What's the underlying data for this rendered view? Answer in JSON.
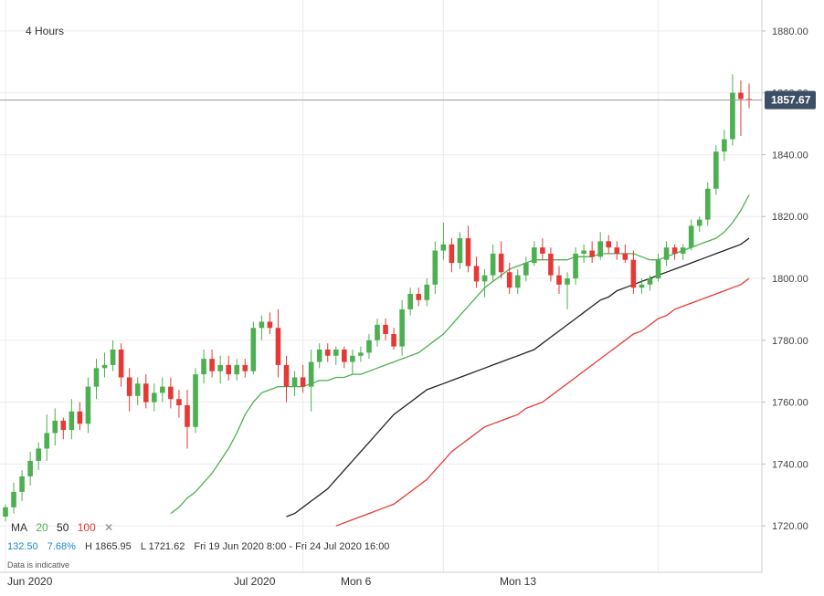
{
  "header": {
    "timeframe": "4 Hours"
  },
  "legend": {
    "ma_label": "MA",
    "ma_periods": [
      {
        "label": "20",
        "color": "#4caf50"
      },
      {
        "label": "50",
        "color": "#222222"
      },
      {
        "label": "100",
        "color": "#e53935"
      }
    ],
    "close_symbol": "✕"
  },
  "stats": {
    "change": "132.50",
    "change_pct": "7.68%",
    "high": "H 1865.95",
    "low": "L 1721.62",
    "range": "Fri 19 Jun 2020 8:00 - Fri 24 Jul 2020 16:00"
  },
  "note": "Data is indicative",
  "chart_data": {
    "type": "candlestick",
    "y_axis": {
      "range": [
        1705,
        1890
      ],
      "ticks": [
        "1720.00",
        "1740.00",
        "1760.00",
        "1780.00",
        "1800.00",
        "1820.00",
        "1840.00",
        "1860.00",
        "1880.00"
      ],
      "position": "right"
    },
    "x_axis": {
      "labels": [
        "Jun 2020",
        "Jul 2020",
        "Mon 6",
        "Mon 13"
      ]
    },
    "current_price": "1857.67",
    "current_value": 1857.67,
    "grid": true,
    "colors": {
      "up": "#4caf50",
      "down": "#e53935",
      "price_tag": "#3d4f63"
    },
    "candles": [
      [
        1723.0,
        1727.0,
        1721.5,
        1726.0
      ],
      [
        1726.0,
        1734.0,
        1724.0,
        1731.0
      ],
      [
        1731.0,
        1738.0,
        1728.0,
        1736.0
      ],
      [
        1736.0,
        1744.0,
        1733.0,
        1741.0
      ],
      [
        1741.0,
        1747.0,
        1738.0,
        1745.0
      ],
      [
        1745.0,
        1756.0,
        1741.0,
        1750.0
      ],
      [
        1750.0,
        1758.0,
        1746.0,
        1754.0
      ],
      [
        1754.0,
        1755.0,
        1748.0,
        1751.0
      ],
      [
        1751.0,
        1761.0,
        1748.0,
        1757.0
      ],
      [
        1757.0,
        1760.0,
        1751.0,
        1753.0
      ],
      [
        1753.0,
        1768.0,
        1750.0,
        1765.0
      ],
      [
        1765.0,
        1774.0,
        1761.0,
        1771.0
      ],
      [
        1771.0,
        1776.0,
        1768.0,
        1772.0
      ],
      [
        1772.0,
        1780.0,
        1770.0,
        1777.0
      ],
      [
        1777.0,
        1779.0,
        1765.0,
        1768.0
      ],
      [
        1768.0,
        1771.0,
        1757.0,
        1762.0
      ],
      [
        1762.0,
        1768.0,
        1759.0,
        1766.0
      ],
      [
        1766.0,
        1769.0,
        1758.0,
        1760.0
      ],
      [
        1760.0,
        1766.0,
        1757.0,
        1763.0
      ],
      [
        1763.0,
        1768.0,
        1760.0,
        1765.0
      ],
      [
        1765.0,
        1768.0,
        1758.0,
        1761.0
      ],
      [
        1761.0,
        1764.0,
        1755.0,
        1759.0
      ],
      [
        1759.0,
        1764.0,
        1745.0,
        1752.0
      ],
      [
        1752.0,
        1771.0,
        1750.0,
        1769.0
      ],
      [
        1769.0,
        1777.0,
        1766.0,
        1774.0
      ],
      [
        1774.0,
        1777.0,
        1768.0,
        1770.0
      ],
      [
        1770.0,
        1775.0,
        1766.0,
        1772.0
      ],
      [
        1772.0,
        1775.0,
        1767.0,
        1769.0
      ],
      [
        1769.0,
        1774.0,
        1767.0,
        1772.0
      ],
      [
        1772.0,
        1774.0,
        1768.0,
        1770.0
      ],
      [
        1770.0,
        1786.0,
        1769.0,
        1784.0
      ],
      [
        1784.0,
        1788.0,
        1780.0,
        1786.0
      ],
      [
        1786.0,
        1789.0,
        1782.0,
        1784.0
      ],
      [
        1784.0,
        1790.0,
        1768.0,
        1772.0
      ],
      [
        1772.0,
        1775.0,
        1760.0,
        1765.0
      ],
      [
        1765.0,
        1770.0,
        1762.0,
        1768.0
      ],
      [
        1768.0,
        1772.0,
        1763.0,
        1765.0
      ],
      [
        1765.0,
        1777.0,
        1757.0,
        1773.0
      ],
      [
        1773.0,
        1779.0,
        1771.0,
        1777.0
      ],
      [
        1777.0,
        1779.0,
        1773.0,
        1775.0
      ],
      [
        1775.0,
        1778.0,
        1772.0,
        1777.0
      ],
      [
        1777.0,
        1778.0,
        1771.0,
        1773.0
      ],
      [
        1773.0,
        1777.0,
        1769.0,
        1775.0
      ],
      [
        1775.0,
        1778.0,
        1773.0,
        1776.0
      ],
      [
        1776.0,
        1782.0,
        1774.0,
        1780.0
      ],
      [
        1780.0,
        1787.0,
        1778.0,
        1785.0
      ],
      [
        1785.0,
        1787.0,
        1780.0,
        1782.0
      ],
      [
        1782.0,
        1784.0,
        1777.0,
        1778.0
      ],
      [
        1778.0,
        1793.0,
        1775.0,
        1790.0
      ],
      [
        1790.0,
        1797.0,
        1788.0,
        1795.0
      ],
      [
        1795.0,
        1797.0,
        1791.0,
        1793.0
      ],
      [
        1793.0,
        1800.0,
        1791.0,
        1798.0
      ],
      [
        1798.0,
        1812.0,
        1795.0,
        1809.0
      ],
      [
        1809.0,
        1818.0,
        1806.0,
        1811.0
      ],
      [
        1811.0,
        1813.0,
        1802.0,
        1805.0
      ],
      [
        1805.0,
        1815.0,
        1803.0,
        1813.0
      ],
      [
        1813.0,
        1817.0,
        1802.0,
        1804.0
      ],
      [
        1804.0,
        1807.0,
        1797.0,
        1799.0
      ],
      [
        1799.0,
        1803.0,
        1794.0,
        1801.0
      ],
      [
        1801.0,
        1811.0,
        1799.0,
        1808.0
      ],
      [
        1808.0,
        1812.0,
        1800.0,
        1802.0
      ],
      [
        1802.0,
        1805.0,
        1795.0,
        1797.0
      ],
      [
        1797.0,
        1803.0,
        1795.0,
        1801.0
      ],
      [
        1801.0,
        1807.0,
        1799.0,
        1805.0
      ],
      [
        1805.0,
        1812.0,
        1804.0,
        1810.0
      ],
      [
        1810.0,
        1813.0,
        1806.0,
        1808.0
      ],
      [
        1808.0,
        1810.0,
        1799.0,
        1801.0
      ],
      [
        1801.0,
        1804.0,
        1795.0,
        1798.0
      ],
      [
        1798.0,
        1802.0,
        1790.0,
        1800.0
      ],
      [
        1800.0,
        1810.0,
        1798.0,
        1808.0
      ],
      [
        1808.0,
        1811.0,
        1805.0,
        1809.0
      ],
      [
        1809.0,
        1812.0,
        1805.0,
        1807.0
      ],
      [
        1807.0,
        1815.0,
        1806.0,
        1812.0
      ],
      [
        1812.0,
        1814.0,
        1808.0,
        1810.0
      ],
      [
        1810.0,
        1812.0,
        1806.0,
        1808.0
      ],
      [
        1808.0,
        1811.0,
        1805.0,
        1806.0
      ],
      [
        1806.0,
        1809.0,
        1795.0,
        1797.0
      ],
      [
        1797.0,
        1800.0,
        1795.0,
        1798.0
      ],
      [
        1798.0,
        1801.0,
        1796.0,
        1800.0
      ],
      [
        1800.0,
        1808.0,
        1799.0,
        1806.0
      ],
      [
        1806.0,
        1812.0,
        1804.0,
        1810.0
      ],
      [
        1810.0,
        1811.0,
        1806.0,
        1808.0
      ],
      [
        1808.0,
        1811.0,
        1806.0,
        1810.0
      ],
      [
        1810.0,
        1819.0,
        1809.0,
        1817.0
      ],
      [
        1817.0,
        1820.0,
        1815.0,
        1819.0
      ],
      [
        1819.0,
        1831.0,
        1817.0,
        1829.0
      ],
      [
        1829.0,
        1843.0,
        1827.0,
        1841.0
      ],
      [
        1841.0,
        1848.0,
        1838.0,
        1845.0
      ],
      [
        1845.0,
        1866.0,
        1843.0,
        1860.0
      ],
      [
        1860.0,
        1864.0,
        1846.0,
        1858.0
      ],
      [
        1858.0,
        1863.0,
        1855.0,
        1857.67
      ]
    ],
    "ma20": [
      1724.0,
      1726.0,
      1729.0,
      1731.0,
      1734.0,
      1737.0,
      1741.0,
      1745.0,
      1750.0,
      1756.0,
      1760.0,
      1763.0,
      1764.0,
      1765.0,
      1765.0,
      1765.0,
      1765.0,
      1766.0,
      1767.0,
      1767.0,
      1768.0,
      1768.0,
      1769.0,
      1769.0,
      1770.0,
      1771.0,
      1772.0,
      1773.0,
      1774.0,
      1775.0,
      1776.0,
      1778.0,
      1780.0,
      1782.0,
      1785.0,
      1788.0,
      1791.0,
      1794.0,
      1797.0,
      1799.0,
      1801.0,
      1803.0,
      1804.0,
      1805.0,
      1806.0,
      1806.0,
      1806.0,
      1806.0,
      1806.0,
      1807.0,
      1807.0,
      1807.0,
      1808.0,
      1808.0,
      1808.0,
      1808.0,
      1808.0,
      1807.0,
      1806.0,
      1806.0,
      1807.0,
      1808.0,
      1809.0,
      1810.0,
      1811.0,
      1812.0,
      1813.0,
      1815.0,
      1818.0,
      1822.0,
      1827.0
    ],
    "ma50": [
      1723.0,
      1724.0,
      1726.0,
      1728.0,
      1730.0,
      1732.0,
      1735.0,
      1738.0,
      1741.0,
      1744.0,
      1747.0,
      1750.0,
      1753.0,
      1756.0,
      1758.0,
      1760.0,
      1762.0,
      1764.0,
      1765.0,
      1766.0,
      1767.0,
      1768.0,
      1769.0,
      1770.0,
      1771.0,
      1772.0,
      1773.0,
      1774.0,
      1775.0,
      1776.0,
      1777.0,
      1779.0,
      1781.0,
      1783.0,
      1785.0,
      1787.0,
      1789.0,
      1791.0,
      1793.0,
      1794.0,
      1796.0,
      1797.0,
      1798.0,
      1799.0,
      1800.0,
      1801.0,
      1802.0,
      1803.0,
      1804.0,
      1805.0,
      1806.0,
      1807.0,
      1808.0,
      1809.0,
      1810.0,
      1811.0,
      1813.0
    ],
    "ma100": [
      1720.0,
      1721.0,
      1722.0,
      1723.0,
      1724.0,
      1725.0,
      1726.0,
      1727.0,
      1729.0,
      1731.0,
      1733.0,
      1735.0,
      1738.0,
      1741.0,
      1744.0,
      1746.0,
      1748.0,
      1750.0,
      1752.0,
      1753.0,
      1754.0,
      1755.0,
      1756.0,
      1758.0,
      1759.0,
      1760.0,
      1762.0,
      1764.0,
      1766.0,
      1768.0,
      1770.0,
      1772.0,
      1774.0,
      1776.0,
      1778.0,
      1780.0,
      1782.0,
      1783.0,
      1785.0,
      1787.0,
      1788.0,
      1790.0,
      1791.0,
      1792.0,
      1793.0,
      1794.0,
      1795.0,
      1796.0,
      1797.0,
      1798.0,
      1800.0
    ]
  }
}
